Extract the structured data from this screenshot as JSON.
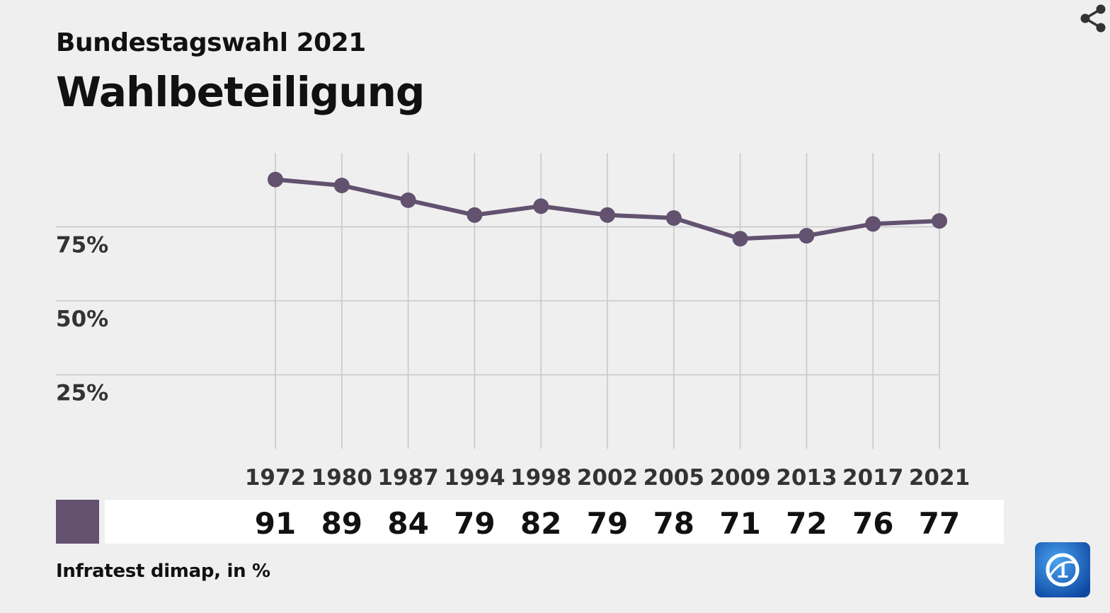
{
  "header": {
    "subtitle": "Bundestagswahl 2021",
    "title": "Wahlbeteiligung"
  },
  "icons": {
    "share": "share-icon",
    "logo": "tagesschau-logo"
  },
  "colors": {
    "series": "#62516f",
    "background": "#efefef",
    "grid": "#c8c8c8",
    "value_band": "#ffffff",
    "logo_blue": "#1565c0"
  },
  "source": "Infratest dimap, in %",
  "chart_data": {
    "type": "line",
    "title": "Wahlbeteiligung",
    "subtitle": "Bundestagswahl 2021",
    "x": [
      "1972",
      "1980",
      "1987",
      "1994",
      "1998",
      "2002",
      "2005",
      "2009",
      "2013",
      "2017",
      "2021"
    ],
    "series": [
      {
        "values": [
          91,
          89,
          84,
          79,
          82,
          79,
          78,
          71,
          72,
          76,
          77
        ],
        "color": "#62516f"
      }
    ],
    "value_labels": [
      "91",
      "89",
      "84",
      "79",
      "82",
      "79",
      "78",
      "71",
      "72",
      "76",
      "77"
    ],
    "y_ticks": [
      25,
      50,
      75
    ],
    "y_tick_labels": [
      "25%",
      "50%",
      "75%"
    ],
    "ylim": [
      0,
      100
    ],
    "xlabel": "",
    "ylabel": "",
    "grid": true,
    "legend": "bottom-left swatch",
    "source": "Infratest dimap, in %"
  }
}
